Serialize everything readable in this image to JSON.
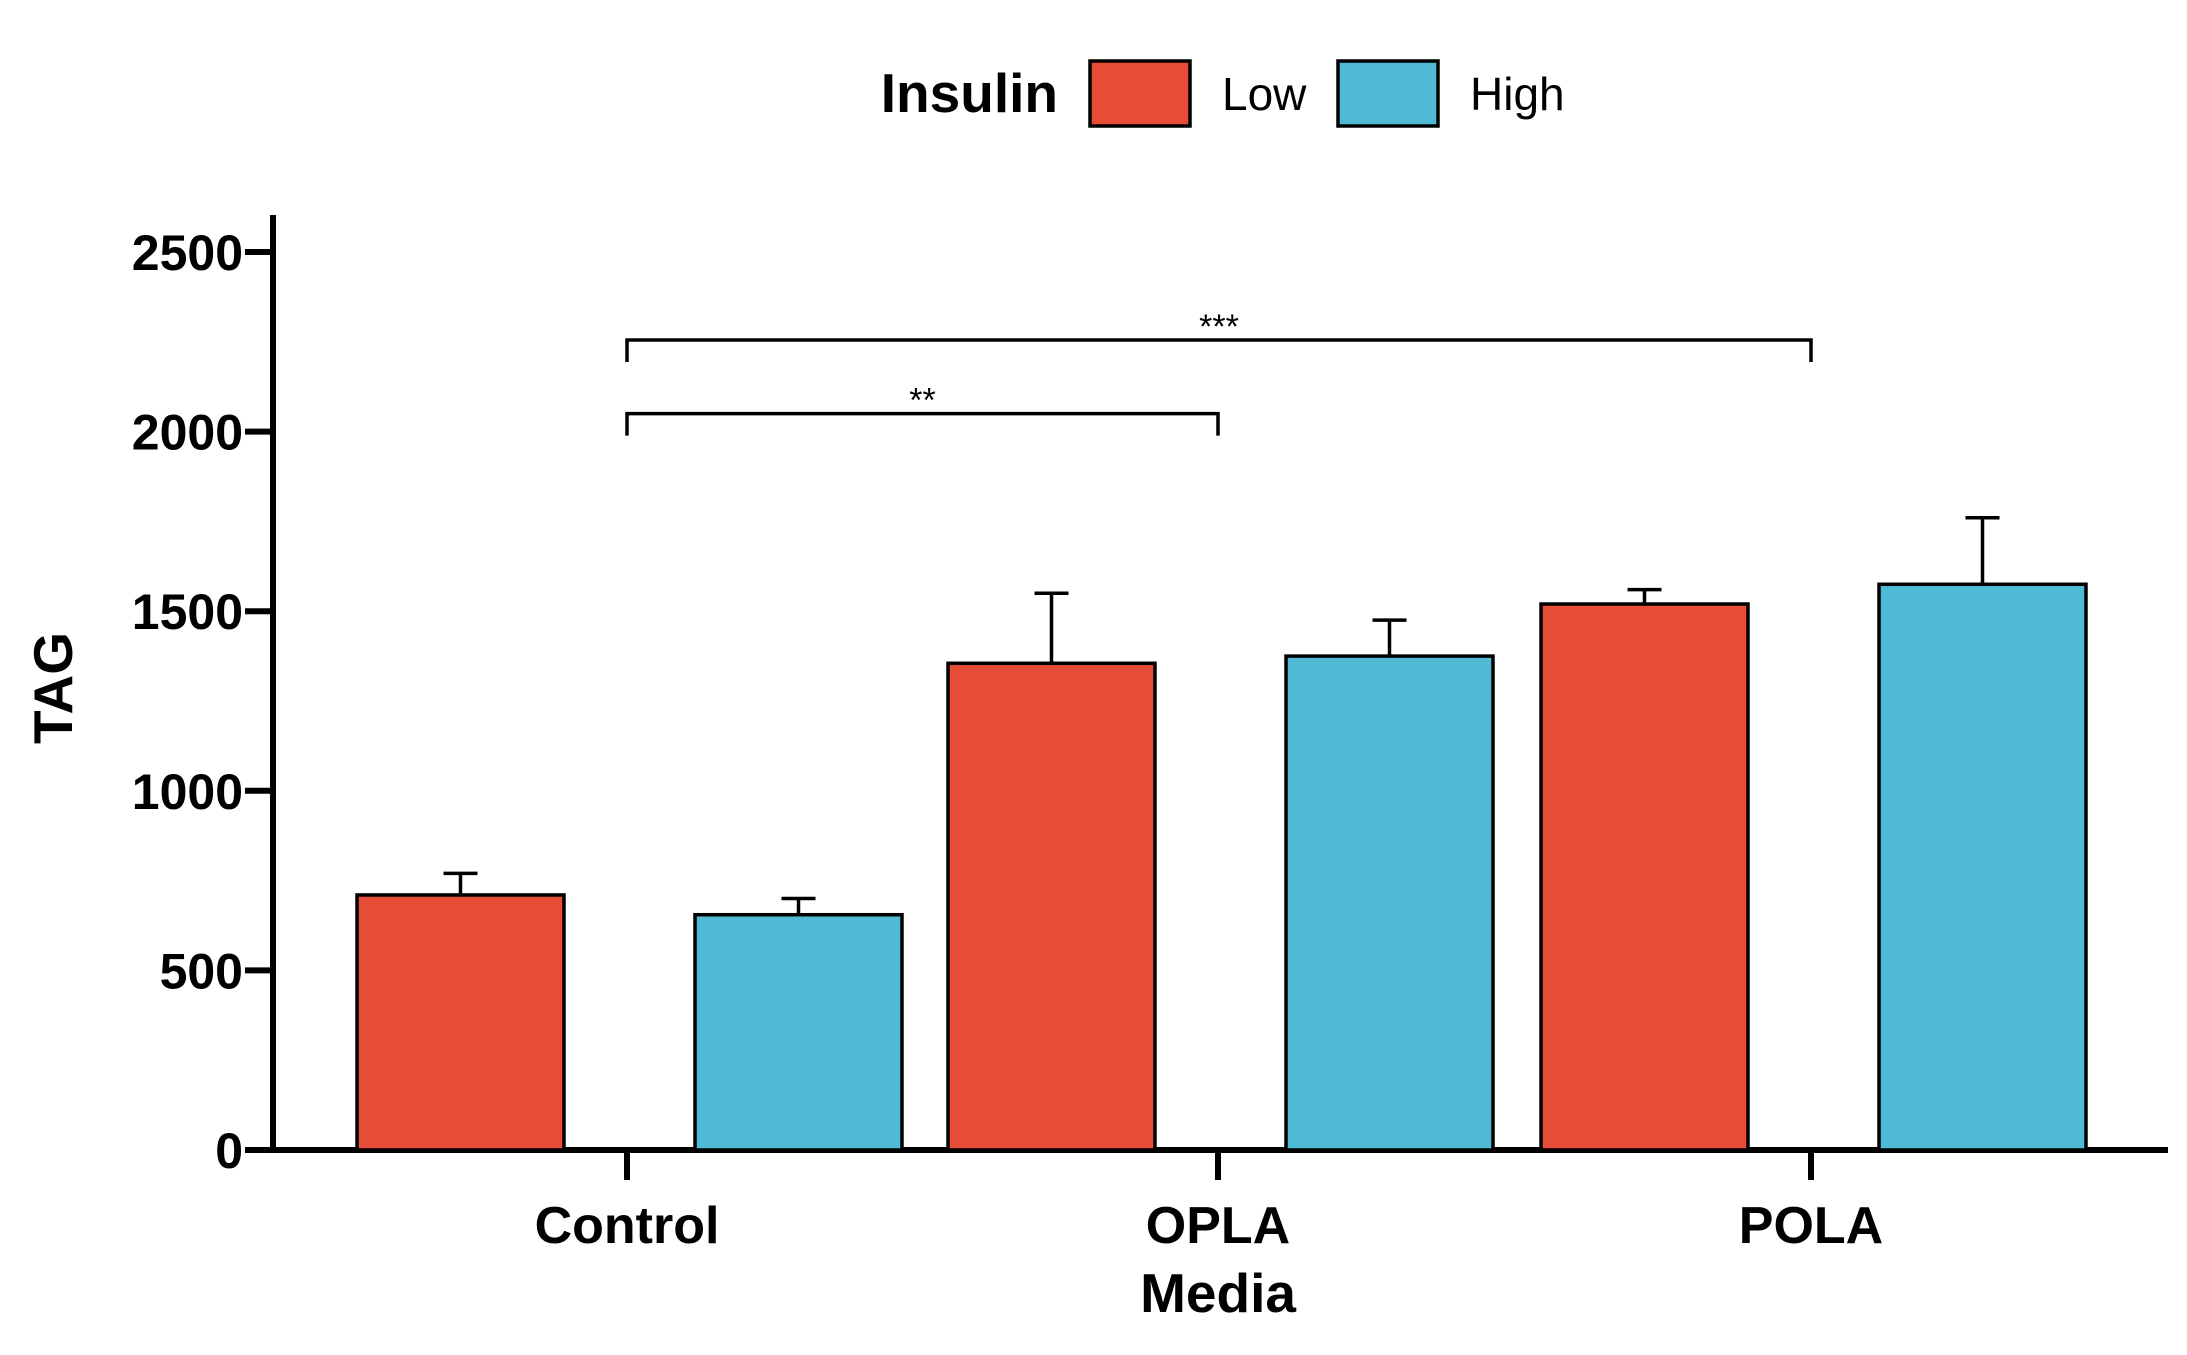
{
  "chart_data": {
    "type": "bar",
    "title": "",
    "xlabel": "Media",
    "ylabel": "TAG",
    "categories": [
      "Control",
      "OPLA",
      "POLA"
    ],
    "ylim": [
      0,
      2600
    ],
    "yticks": [
      0,
      500,
      1000,
      1500,
      2000,
      2500
    ],
    "grid": false,
    "legend": {
      "title": "Insulin",
      "position": "top-center",
      "entries": [
        "Low",
        "High"
      ]
    },
    "series": [
      {
        "name": "Low",
        "color": "#e64c36",
        "values": [
          710,
          1355,
          1520
        ],
        "errors": [
          60,
          195,
          40
        ]
      },
      {
        "name": "High",
        "color": "#4fbad6",
        "values": [
          655,
          1375,
          1575
        ],
        "errors": [
          45,
          100,
          185
        ]
      }
    ],
    "annotations": [
      {
        "from": "Control",
        "to": "OPLA",
        "y": 2050,
        "label": "**"
      },
      {
        "from": "Control",
        "to": "POLA",
        "y": 2255,
        "label": "***"
      }
    ]
  }
}
